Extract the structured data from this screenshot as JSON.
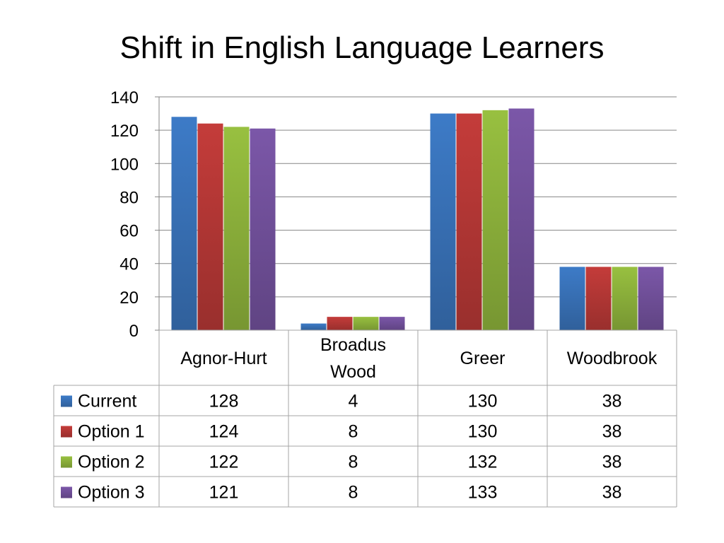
{
  "chart_data": {
    "type": "bar",
    "title": "Shift in English Language Learners",
    "categories": [
      "Agnor-Hurt",
      "Broadus Wood",
      "Greer",
      "Woodbrook"
    ],
    "category_lines": [
      [
        "Agnor-Hurt"
      ],
      [
        "Broadus",
        "Wood"
      ],
      [
        "Greer"
      ],
      [
        "Woodbrook"
      ]
    ],
    "series": [
      {
        "name": "Current",
        "values": [
          128,
          4,
          130,
          38
        ],
        "color": "#3d7bc7"
      },
      {
        "name": "Option 1",
        "values": [
          124,
          8,
          130,
          38
        ],
        "color": "#c43c3a"
      },
      {
        "name": "Option 2",
        "values": [
          122,
          8,
          132,
          38
        ],
        "color": "#98c040"
      },
      {
        "name": "Option 3",
        "values": [
          121,
          8,
          133,
          38
        ],
        "color": "#7b57a8"
      }
    ],
    "ylim": [
      0,
      140
    ],
    "yticks": [
      0,
      20,
      40,
      60,
      80,
      100,
      120,
      140
    ],
    "grid": true,
    "legend": "data-table"
  }
}
